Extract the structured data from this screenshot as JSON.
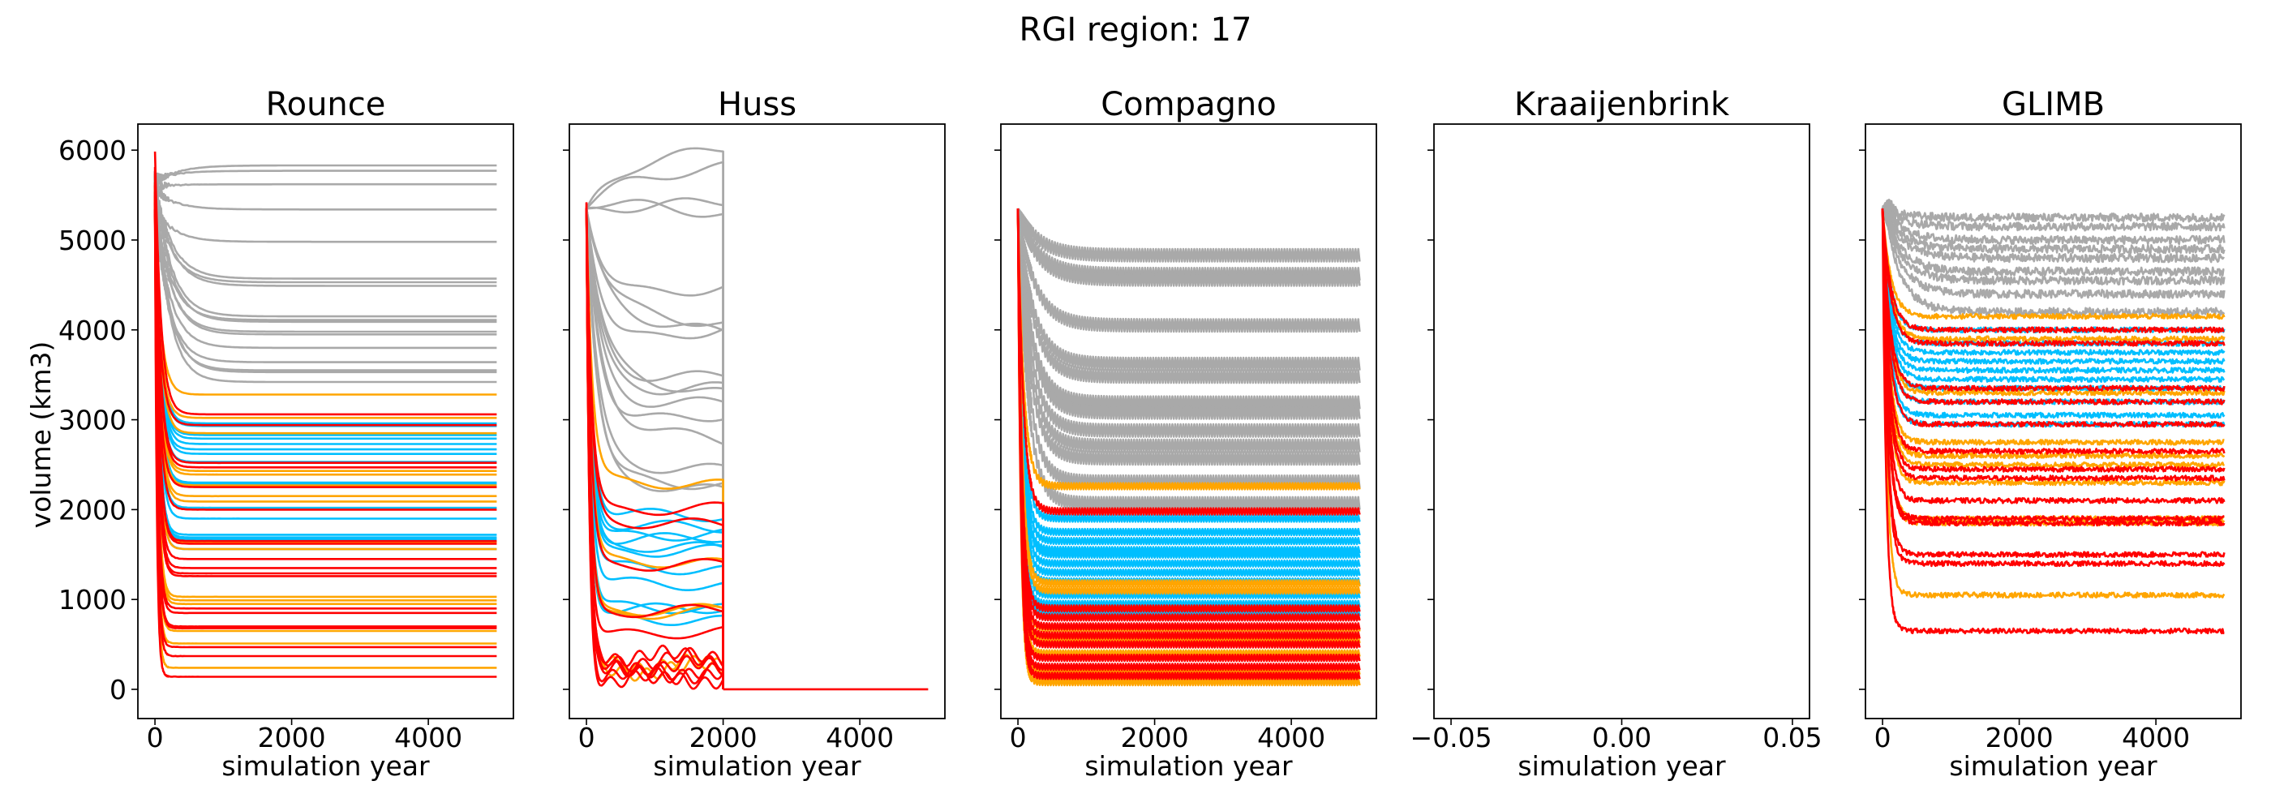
{
  "chart_data": {
    "type": "line",
    "title": "RGI region: 17",
    "ylabel": "volume (km3)",
    "ylim": [
      -325,
      6290
    ],
    "yticks": [
      0,
      1000,
      2000,
      3000,
      4000,
      5000,
      6000
    ],
    "grid": false,
    "colors": {
      "gray": "#a9a9a9",
      "orange": "#ffa500",
      "red": "#ff0000",
      "blue": "#00bfff"
    },
    "panels": [
      {
        "title": "Rounce",
        "xlabel": "simulation year",
        "xlim": [
          -250,
          5245
        ],
        "xticks": [
          0,
          2000,
          4000
        ],
        "xticklabels": [
          "0",
          "2000",
          "4000"
        ],
        "end_year": 5000,
        "variability": "smooth",
        "series": [
          {
            "color": "gray",
            "final_values": [
              5830,
              5770,
              5620,
              5340,
              4980,
              4570,
              4530,
              4490,
              4150,
              4110,
              4090,
              3980,
              3950,
              3800,
              3640,
              3550,
              3530,
              3420
            ]
          },
          {
            "color": "blue",
            "final_values": [
              2960,
              2930,
              2830,
              2790,
              2730,
              2670,
              2620,
              2530,
              2300,
              2280,
              2020,
              1900,
              1720,
              1690,
              1670,
              1560
            ]
          },
          {
            "color": "orange",
            "final_values": [
              3280,
              3020,
              2850,
              2430,
              2390,
              2270,
              2150,
              2090,
              1640,
              1560,
              1030,
              990,
              950,
              650,
              510,
              240
            ]
          },
          {
            "color": "red",
            "final_values": [
              3060,
              2940,
              2520,
              2470,
              2250,
              2000,
              1650,
              1620,
              1450,
              1350,
              1290,
              1260,
              900,
              850,
              700,
              680,
              470,
              370,
              140
            ],
            "start_value": 6000
          }
        ]
      },
      {
        "title": "Huss",
        "xlabel": "simulation year",
        "xlim": [
          -250,
          5245
        ],
        "xticks": [
          0,
          2000,
          4000
        ],
        "xticklabels": [
          "0",
          "2000",
          "4000"
        ],
        "end_year": 2000,
        "variability": "drift",
        "after_end_value": 0,
        "after_end_year": 5000,
        "series": [
          {
            "color": "gray",
            "final_values": [
              5790,
              5640,
              5460,
              5340,
              4330,
              4260,
              4180,
              3790,
              3510,
              3440,
              3300,
              3170,
              3000,
              2950,
              2480,
              2350,
              2320
            ]
          },
          {
            "color": "blue",
            "final_values": [
              1970,
              1830,
              1700,
              1650,
              1600,
              1520,
              1380,
              1200,
              930,
              880,
              800
            ]
          },
          {
            "color": "orange",
            "final_values": [
              2320,
              1440,
              870,
              820,
              300,
              200
            ]
          },
          {
            "color": "red",
            "final_values": [
              1980,
              1860,
              1370,
              850,
              600,
              380,
              320,
              260,
              200,
              150,
              100
            ]
          }
        ]
      },
      {
        "title": "Compagno",
        "xlabel": "simulation year",
        "xlim": [
          -250,
          5245
        ],
        "xticks": [
          0,
          2000,
          4000
        ],
        "xticklabels": [
          "0",
          "2000",
          "4000"
        ],
        "end_year": 5000,
        "variability": "oscillating",
        "series": [
          {
            "color": "gray",
            "final_values": [
              4830,
              4620,
              4560,
              4050,
              3620,
              3480,
              3190,
              3080,
              2880,
              2710,
              2570,
              2310,
              2070
            ]
          },
          {
            "color": "blue",
            "final_values": [
              1900,
              1750,
              1650,
              1550,
              1500,
              1400,
              1300,
              1200,
              1050,
              950,
              850
            ]
          },
          {
            "color": "orange",
            "final_values": [
              2260,
              1180,
              1100,
              680,
              550,
              400,
              200,
              80
            ]
          },
          {
            "color": "red",
            "final_values": [
              1980,
              900,
              800,
              700,
              600,
              500,
              350,
              250,
              150
            ]
          }
        ]
      },
      {
        "title": "Kraaijenbrink",
        "xlabel": "simulation year",
        "xlim": [
          -0.055,
          0.055
        ],
        "xticks": [
          -0.05,
          0,
          0.05
        ],
        "xticklabels": [
          "−0.05",
          "0.00",
          "0.05"
        ],
        "variability": "none",
        "series": []
      },
      {
        "title": "GLIMB",
        "xlabel": "simulation year",
        "xlim": [
          -250,
          5245
        ],
        "xticks": [
          0,
          2000,
          4000
        ],
        "xticklabels": [
          "0",
          "2000",
          "4000"
        ],
        "end_year": 5000,
        "variability": "noisy",
        "series": [
          {
            "color": "gray",
            "final_values": [
              5250,
              5150,
              5000,
              4900,
              4800,
              4650,
              4550,
              4400,
              4200
            ]
          },
          {
            "color": "blue",
            "final_values": [
              4000,
              3850,
              3750,
              3650,
              3550,
              3450,
              3350,
              3200,
              3050,
              2950
            ]
          },
          {
            "color": "orange",
            "final_values": [
              4150,
              3900,
              3300,
              2750,
              2600,
              2500,
              2300,
              1900,
              1850,
              1050
            ]
          },
          {
            "color": "red",
            "final_values": [
              4000,
              3850,
              3350,
              3200,
              2950,
              2650,
              2450,
              2350,
              2100,
              1900,
              1850,
              1500,
              1400,
              650
            ]
          }
        ]
      }
    ]
  }
}
